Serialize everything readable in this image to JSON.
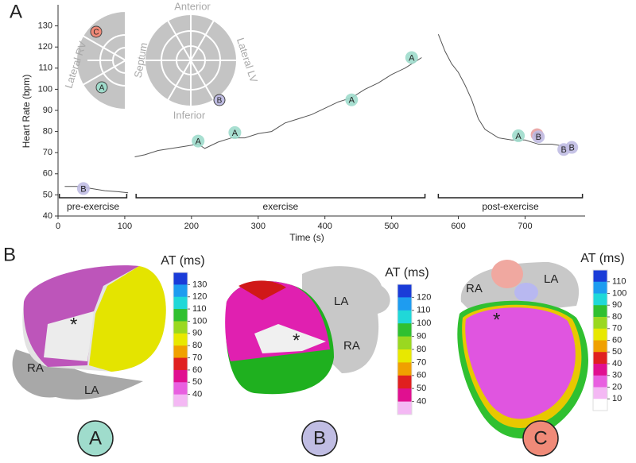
{
  "panel_labels": [
    "A",
    "B"
  ],
  "chart_data": {
    "type": "line",
    "xlabel": "Time (s)",
    "ylabel": "Heart Rate (bpm)",
    "xlim": [
      0,
      790
    ],
    "ylim": [
      40,
      140
    ],
    "xticks": [
      0,
      100,
      200,
      300,
      400,
      500,
      600,
      700
    ],
    "yticks": [
      40,
      50,
      60,
      70,
      80,
      90,
      100,
      110,
      120,
      130
    ],
    "x": [
      10,
      30,
      50,
      70,
      90,
      105,
      110,
      115,
      130,
      150,
      170,
      190,
      210,
      220,
      240,
      260,
      280,
      300,
      320,
      340,
      360,
      380,
      400,
      420,
      440,
      460,
      480,
      500,
      520,
      540,
      545,
      560,
      570,
      580,
      590,
      600,
      610,
      620,
      630,
      640,
      660,
      680,
      700,
      720,
      740,
      760,
      770
    ],
    "series": [
      {
        "color": "#555555",
        "values": [
          54,
          54,
          53,
          52,
          51.5,
          51,
          null,
          68,
          69,
          71,
          72,
          73,
          74,
          72,
          75,
          77,
          77,
          79,
          80,
          84,
          86,
          88,
          91,
          94,
          96,
          100,
          103,
          107,
          110,
          114,
          115,
          null,
          126,
          118,
          112,
          108,
          102,
          95,
          86,
          81,
          77,
          76,
          76,
          74,
          74,
          73,
          73
        ]
      }
    ],
    "markers": [
      {
        "label": "B",
        "x": 38,
        "y": 53,
        "color": "#c0bde3"
      },
      {
        "label": "A",
        "x": 210,
        "y": 75.5,
        "color": "#9fdccc"
      },
      {
        "label": "A",
        "x": 265,
        "y": 79.5,
        "color": "#9fdccc"
      },
      {
        "label": "A",
        "x": 440,
        "y": 95,
        "color": "#9fdccc"
      },
      {
        "label": "A",
        "x": 530,
        "y": 115,
        "color": "#9fdccc"
      },
      {
        "label": "A",
        "x": 690,
        "y": 78,
        "color": "#9fdccc"
      },
      {
        "label": "C",
        "x": 718,
        "y": 78.5,
        "color": "#e8a0a0"
      },
      {
        "label": "B",
        "x": 720,
        "y": 77.5,
        "color": "#c0bde3"
      },
      {
        "label": "B",
        "x": 758,
        "y": 71.5,
        "color": "#c0bde3"
      },
      {
        "label": "B",
        "x": 770,
        "y": 72.5,
        "color": "#c0bde3"
      }
    ],
    "phases": [
      {
        "label": "pre-exercise",
        "start": 2,
        "end": 103
      },
      {
        "label": "exercise",
        "start": 117,
        "end": 550
      },
      {
        "label": "post-exercise",
        "start": 570,
        "end": 786
      }
    ],
    "bullseye": {
      "labels": [
        "Lateral RV",
        "Septum",
        "Anterior",
        "Lateral LV",
        "Inferior"
      ],
      "markers": [
        "C",
        "A",
        "B"
      ]
    }
  },
  "maps": [
    {
      "label": "A",
      "title": "AT (ms)",
      "marker": "*",
      "annotations": [
        "RA",
        "LA"
      ],
      "color": "#9fdccc",
      "ticks": [
        130,
        120,
        110,
        100,
        90,
        80,
        70,
        60,
        50,
        40
      ],
      "colors": [
        "#1a3cd8",
        "#1e9cf0",
        "#20d8d8",
        "#30c030",
        "#9ad820",
        "#e8e800",
        "#f0a000",
        "#e02020",
        "#e01090",
        "#e860e0",
        "#f4b8f4"
      ]
    },
    {
      "label": "B",
      "title": "AT (ms)",
      "marker": "*",
      "annotations": [
        "LA",
        "RA"
      ],
      "color": "#c0bde3",
      "ticks": [
        120,
        110,
        100,
        90,
        80,
        70,
        60,
        50,
        40
      ],
      "colors": [
        "#1a3cd8",
        "#1e9cf0",
        "#20d8d8",
        "#30c030",
        "#9ad820",
        "#e8e800",
        "#f0a000",
        "#e02020",
        "#e01090",
        "#f4b8f4"
      ]
    },
    {
      "label": "C",
      "title": "AT (ms)",
      "marker": "*",
      "annotations": [
        "RA",
        "LA"
      ],
      "color": "#f08a78",
      "ticks": [
        110,
        100,
        90,
        80,
        70,
        60,
        50,
        40,
        30,
        20,
        10
      ],
      "colors": [
        "#1a3cd8",
        "#1e9cf0",
        "#20d8d8",
        "#30c030",
        "#9ad820",
        "#e8e800",
        "#f0a000",
        "#e02020",
        "#e01090",
        "#e860e0",
        "#f4b8f4",
        "#ffffff"
      ]
    }
  ]
}
